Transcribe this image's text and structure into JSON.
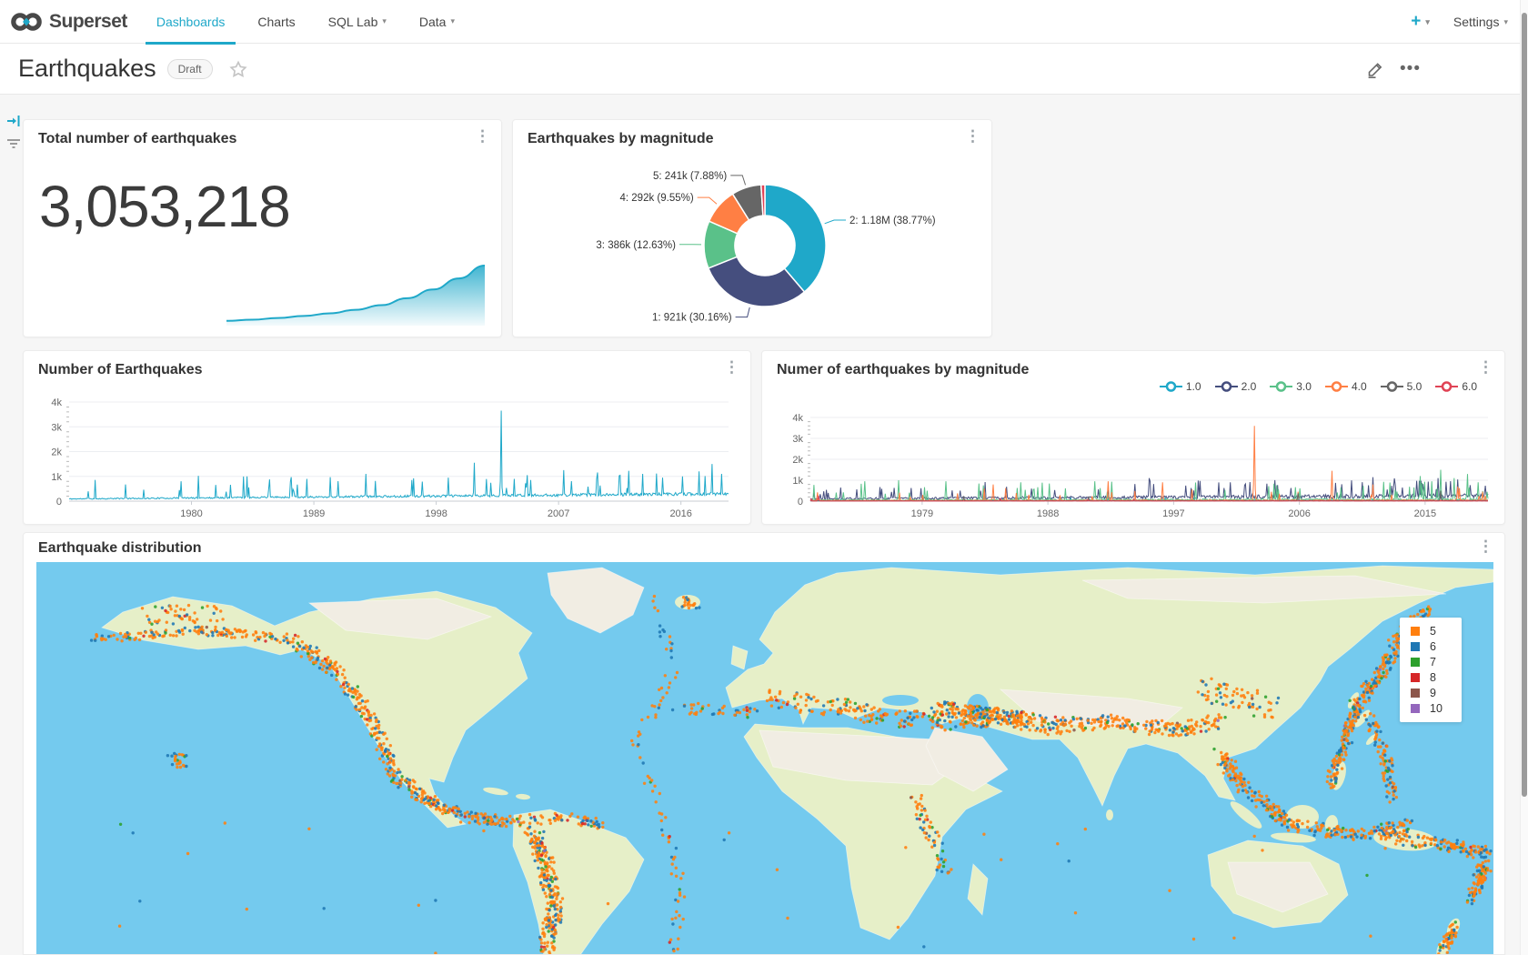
{
  "nav": {
    "brand": "Superset",
    "items": [
      {
        "label": "Dashboards",
        "active": true,
        "caret": false
      },
      {
        "label": "Charts",
        "active": false,
        "caret": false
      },
      {
        "label": "SQL Lab",
        "active": false,
        "caret": true
      },
      {
        "label": "Data",
        "active": false,
        "caret": true
      }
    ],
    "plus_label": "+",
    "settings_label": "Settings"
  },
  "header": {
    "title": "Earthquakes",
    "status_badge": "Draft"
  },
  "colors": {
    "accent": "#1FA8C9",
    "series_cyan": "#1FA8C9",
    "series_indigo": "#454E7E",
    "series_green": "#5AC189",
    "series_orange": "#FF7F44",
    "series_gray": "#666666",
    "series_red": "#E04355",
    "ocean": "#74CAEE",
    "land_green": "#E6EFC8",
    "land_beige": "#F1EDE3"
  },
  "cards": {
    "big_number": {
      "title": "Total number of earthquakes",
      "value": "3,053,218"
    },
    "donut": {
      "title": "Earthquakes by magnitude"
    },
    "ts1": {
      "title": "Number of Earthquakes"
    },
    "ts2": {
      "title": "Numer of earthquakes by magnitude"
    },
    "map": {
      "title": "Earthquake distribution"
    }
  },
  "chart_data": [
    {
      "id": "big_number_trend",
      "type": "area",
      "title": "Total number of earthquakes",
      "value": "3,053,218",
      "trend_points": [
        [
          0,
          0.05
        ],
        [
          0.1,
          0.07
        ],
        [
          0.2,
          0.1
        ],
        [
          0.3,
          0.135
        ],
        [
          0.4,
          0.18
        ],
        [
          0.5,
          0.24
        ],
        [
          0.6,
          0.32
        ],
        [
          0.7,
          0.44
        ],
        [
          0.8,
          0.59
        ],
        [
          0.9,
          0.78
        ],
        [
          1,
          1.0
        ]
      ],
      "color": "#1FA8C9"
    },
    {
      "id": "magnitude_pie",
      "type": "pie",
      "title": "Earthquakes by magnitude",
      "slices": [
        {
          "name": "2",
          "label": "2: 1.18M (38.77%)",
          "value_text": "1.18M",
          "pct": 38.77,
          "color": "#1FA8C9",
          "label_visible": true
        },
        {
          "name": "1",
          "label": "1: 921k (30.16%)",
          "value_text": "921k",
          "pct": 30.16,
          "color": "#454E7E",
          "label_visible": true
        },
        {
          "name": "3",
          "label": "3: 386k (12.63%)",
          "value_text": "386k",
          "pct": 12.63,
          "color": "#5AC189",
          "label_visible": true
        },
        {
          "name": "4",
          "label": "4: 292k (9.55%)",
          "value_text": "292k",
          "pct": 9.55,
          "color": "#FF7F44",
          "label_visible": true
        },
        {
          "name": "5",
          "label": "5: 241k (7.88%)",
          "value_text": "241k",
          "pct": 7.88,
          "color": "#666666",
          "label_visible": true
        },
        {
          "name": "6",
          "label": "",
          "value_text": "",
          "pct": 1.01,
          "color": "#E04355",
          "label_visible": false
        }
      ]
    },
    {
      "id": "ts1",
      "type": "line",
      "title": "Number of Earthquakes",
      "ylim": [
        0,
        4000
      ],
      "ytick_labels": [
        "0",
        "1k",
        "2k",
        "3k",
        "4k"
      ],
      "xtick_years": [
        1980,
        1989,
        1998,
        2007,
        2016
      ],
      "x_range": [
        1971,
        2019.5
      ],
      "grid": true,
      "series": [
        {
          "name": "Count",
          "color": "#1FA8C9",
          "base": [
            90,
            300
          ],
          "noise": 0.22,
          "spike_prob": 0.05,
          "spike_range": [
            250,
            950
          ],
          "seed": 11,
          "spikes": [
            [
              0.17,
              800
            ],
            [
              0.27,
              1000
            ],
            [
              0.36,
              900
            ],
            [
              0.45,
              1100
            ],
            [
              0.52,
              850
            ],
            [
              0.575,
              950
            ],
            [
              0.615,
              1550
            ],
            [
              0.655,
              3650
            ],
            [
              0.675,
              900
            ],
            [
              0.7,
              850
            ],
            [
              0.75,
              1250
            ],
            [
              0.8,
              900
            ],
            [
              0.87,
              1100
            ],
            [
              0.9,
              950
            ],
            [
              0.93,
              1000
            ],
            [
              0.955,
              1200
            ],
            [
              0.975,
              1500
            ],
            [
              0.99,
              1100
            ]
          ]
        }
      ]
    },
    {
      "id": "ts2",
      "type": "line",
      "title": "Numer of earthquakes by magnitude",
      "ylim": [
        0,
        4000
      ],
      "ytick_labels": [
        "0",
        "1k",
        "2k",
        "3k",
        "4k"
      ],
      "xtick_years": [
        1979,
        1988,
        1997,
        2006,
        2015
      ],
      "x_range": [
        1971,
        2019.5
      ],
      "grid": true,
      "legend_position": "top-right",
      "series": [
        {
          "name": "1.0",
          "color": "#1FA8C9",
          "base": [
            25,
            45
          ],
          "noise": 0.3,
          "spike_prob": 0.01,
          "spike_range": [
            60,
            150
          ],
          "seed": 21,
          "spikes": []
        },
        {
          "name": "2.0",
          "color": "#454E7E",
          "base": [
            110,
            260
          ],
          "noise": 0.4,
          "spike_prob": 0.06,
          "spike_range": [
            200,
            800
          ],
          "seed": 22,
          "spikes": [
            [
              0.5,
              1100
            ],
            [
              0.62,
              900
            ],
            [
              0.83,
              1150
            ]
          ]
        },
        {
          "name": "3.0",
          "color": "#5AC189",
          "base": [
            50,
            90
          ],
          "noise": 0.5,
          "spike_prob": 0.05,
          "spike_range": [
            250,
            900
          ],
          "seed": 23,
          "spikes": [
            [
              0.08,
              950
            ],
            [
              0.13,
              1000
            ],
            [
              0.2,
              950
            ],
            [
              0.31,
              900
            ],
            [
              0.42,
              950
            ],
            [
              0.9,
              1200
            ],
            [
              0.93,
              1500
            ],
            [
              0.95,
              1100
            ],
            [
              0.97,
              1300
            ],
            [
              0.985,
              900
            ]
          ]
        },
        {
          "name": "4.0",
          "color": "#FF7F44",
          "base": [
            30,
            45
          ],
          "noise": 0.4,
          "spike_prob": 0.02,
          "spike_range": [
            150,
            600
          ],
          "seed": 24,
          "spikes": [
            [
              0.01,
              420
            ],
            [
              0.27,
              800
            ],
            [
              0.44,
              950
            ],
            [
              0.52,
              900
            ],
            [
              0.655,
              3600
            ],
            [
              0.77,
              1450
            ],
            [
              0.83,
              800
            ],
            [
              0.955,
              700
            ]
          ]
        },
        {
          "name": "5.0",
          "color": "#666666",
          "base": [
            12,
            20
          ],
          "noise": 0.4,
          "spike_prob": 0.01,
          "spike_range": [
            80,
            300
          ],
          "seed": 25,
          "spikes": [
            [
              0.72,
              380
            ],
            [
              0.93,
              500
            ]
          ]
        },
        {
          "name": "6.0",
          "color": "#E04355",
          "base": [
            5,
            8
          ],
          "noise": 0.4,
          "spike_prob": 0.004,
          "spike_range": [
            40,
            120
          ],
          "seed": 26,
          "spikes": [
            [
              0.012,
              260
            ]
          ]
        }
      ]
    },
    {
      "id": "quake_map",
      "type": "scatter",
      "title": "Earthquake distribution",
      "legend": [
        {
          "label": "5",
          "color": "#FF7F0E"
        },
        {
          "label": "6",
          "color": "#1F77B4"
        },
        {
          "label": "7",
          "color": "#2CA02C"
        },
        {
          "label": "8",
          "color": "#D62728"
        },
        {
          "label": "9",
          "color": "#8C564B"
        },
        {
          "label": "10",
          "color": "#9467BD"
        }
      ],
      "color_weights": [
        0.7,
        0.22,
        0.05,
        0.02,
        0.006,
        0.004
      ],
      "seed": 42,
      "fault_lines": [
        {
          "pts": [
            [
              60,
              85
            ],
            [
              180,
              75
            ],
            [
              280,
              85
            ]
          ],
          "n": 150,
          "spread": 5
        },
        {
          "pts": [
            [
              120,
              60
            ],
            [
              200,
              55
            ]
          ],
          "n": 50,
          "spread": 10
        },
        {
          "pts": [
            [
              280,
              85
            ],
            [
              330,
              120
            ],
            [
              370,
              175
            ],
            [
              395,
              235
            ],
            [
              430,
              262
            ]
          ],
          "n": 280,
          "spread": 7
        },
        {
          "pts": [
            [
              430,
              262
            ],
            [
              470,
              280
            ],
            [
              520,
              285
            ]
          ],
          "n": 120,
          "spread": 6
        },
        {
          "pts": [
            [
              520,
              285
            ],
            [
              590,
              280
            ],
            [
              620,
              290
            ]
          ],
          "n": 70,
          "spread": 6
        },
        {
          "pts": [
            [
              545,
              295
            ],
            [
              560,
              330
            ],
            [
              570,
              380
            ],
            [
              560,
              430
            ]
          ],
          "n": 260,
          "spread": 9
        },
        {
          "pts": [
            [
              680,
              30
            ],
            [
              700,
              120
            ],
            [
              660,
              200
            ],
            [
              690,
              280
            ],
            [
              710,
              360
            ],
            [
              700,
              430
            ]
          ],
          "n": 90,
          "spread": 6
        },
        {
          "pts": [
            [
              700,
              160
            ],
            [
              790,
              165
            ]
          ],
          "n": 40,
          "spread": 6
        },
        {
          "pts": [
            [
              800,
              150
            ],
            [
              880,
              160
            ],
            [
              930,
              170
            ],
            [
              1000,
              175
            ],
            [
              1060,
              170
            ],
            [
              1120,
              180
            ]
          ],
          "n": 300,
          "spread": 10
        },
        {
          "pts": [
            [
              990,
              160
            ],
            [
              1090,
              175
            ]
          ],
          "n": 160,
          "spread": 8
        },
        {
          "pts": [
            [
              1120,
              180
            ],
            [
              1180,
              175
            ],
            [
              1250,
              185
            ],
            [
              1300,
              175
            ]
          ],
          "n": 210,
          "spread": 8
        },
        {
          "pts": [
            [
              1280,
              140
            ],
            [
              1360,
              160
            ]
          ],
          "n": 70,
          "spread": 14
        },
        {
          "pts": [
            [
              1300,
              210
            ],
            [
              1330,
              250
            ],
            [
              1380,
              290
            ],
            [
              1450,
              300
            ],
            [
              1510,
              290
            ]
          ],
          "n": 290,
          "spread": 7
        },
        {
          "pts": [
            [
              1420,
              250
            ],
            [
              1440,
              200
            ],
            [
              1450,
              160
            ]
          ],
          "n": 140,
          "spread": 6
        },
        {
          "pts": [
            [
              1450,
              160
            ],
            [
              1480,
              120
            ],
            [
              1500,
              80
            ],
            [
              1530,
              50
            ]
          ],
          "n": 200,
          "spread": 7
        },
        {
          "pts": [
            [
              1465,
              170
            ],
            [
              1485,
              220
            ],
            [
              1490,
              260
            ]
          ],
          "n": 90,
          "spread": 6
        },
        {
          "pts": [
            [
              1480,
              300
            ],
            [
              1540,
              310
            ],
            [
              1595,
              320
            ]
          ],
          "n": 140,
          "spread": 7
        },
        {
          "pts": [
            [
              1592,
              330
            ],
            [
              1578,
              370
            ]
          ],
          "n": 90,
          "spread": 6
        },
        {
          "pts": [
            [
              1560,
              400
            ],
            [
              1545,
              430
            ]
          ],
          "n": 60,
          "spread": 5
        },
        {
          "pts": [
            [
              965,
              260
            ],
            [
              985,
              300
            ],
            [
              1000,
              345
            ]
          ],
          "n": 60,
          "spread": 7
        },
        {
          "pts": [
            [
              150,
              215
            ],
            [
              158,
              220
            ]
          ],
          "n": 25,
          "spread": 8
        },
        {
          "pts": [
            [
              712,
              44
            ],
            [
              724,
              46
            ]
          ],
          "n": 22,
          "spread": 6
        },
        {
          "pts": [
            [
              40,
              400
            ],
            [
              1590,
              410
            ]
          ],
          "n": 60,
          "spread": 120
        }
      ]
    }
  ]
}
